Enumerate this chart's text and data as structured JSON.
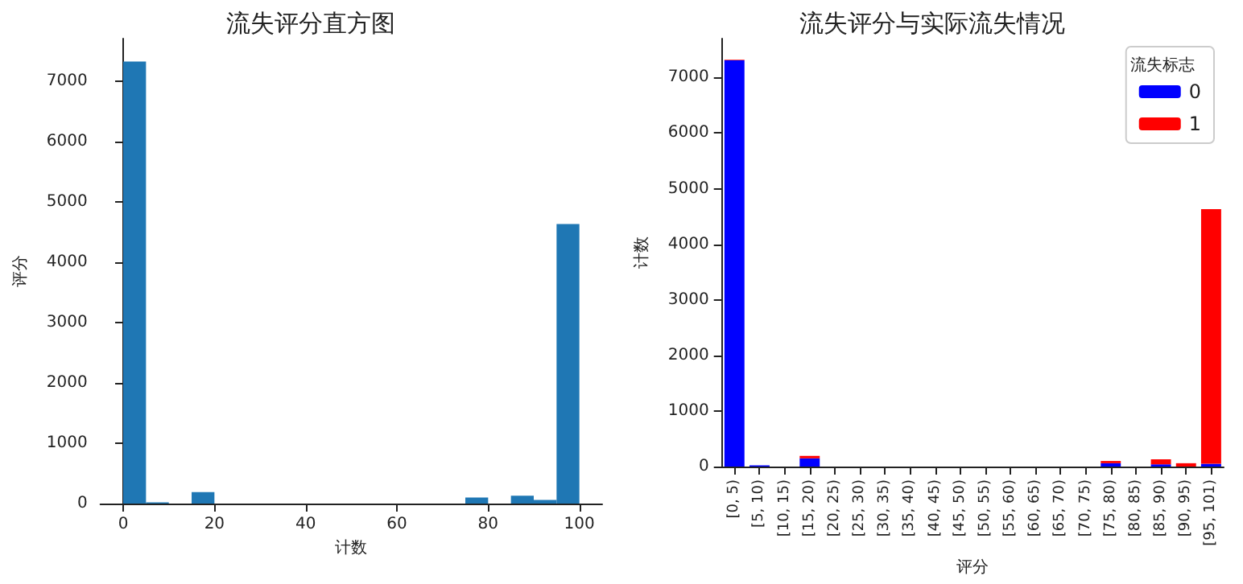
{
  "chart_data": [
    {
      "type": "histogram",
      "title": "流失评分直方图",
      "xlabel": "计数",
      "ylabel": "评分",
      "bins": [
        0,
        5,
        10,
        15,
        20,
        25,
        30,
        35,
        40,
        45,
        50,
        55,
        60,
        65,
        70,
        75,
        80,
        85,
        90,
        95,
        100
      ],
      "values": [
        7320,
        20,
        0,
        190,
        0,
        0,
        0,
        0,
        0,
        0,
        0,
        0,
        0,
        0,
        0,
        100,
        0,
        130,
        60,
        4630
      ],
      "color": "#1f77b4",
      "xlim": [
        -5,
        105
      ],
      "xticks": [
        0,
        20,
        40,
        60,
        80,
        100
      ],
      "ylim": [
        0,
        7700
      ],
      "yticks": [
        0,
        1000,
        2000,
        3000,
        4000,
        5000,
        6000,
        7000
      ],
      "grid": false
    },
    {
      "type": "bar",
      "stacked": true,
      "title": "流失评分与实际流失情况",
      "xlabel": "评分",
      "ylabel": "计数",
      "legend_title": "流失标志",
      "legend": "top right",
      "grid": false,
      "categories": [
        "[0, 5)",
        "[5, 10)",
        "[10, 15)",
        "[15, 20)",
        "[20, 25)",
        "[25, 30)",
        "[30, 35)",
        "[35, 40)",
        "[40, 45)",
        "[45, 50)",
        "[50, 55)",
        "[55, 60)",
        "[60, 65)",
        "[65, 70)",
        "[70, 75)",
        "[75, 80)",
        "[80, 85)",
        "[85, 90)",
        "[90, 95)",
        "[95, 101)"
      ],
      "ylim": [
        0,
        7700
      ],
      "yticks": [
        0,
        1000,
        2000,
        3000,
        4000,
        5000,
        6000,
        7000
      ],
      "series": [
        {
          "name": "0",
          "color": "#0000ff",
          "values": [
            7310,
            20,
            0,
            150,
            0,
            0,
            0,
            0,
            0,
            0,
            0,
            0,
            0,
            0,
            0,
            60,
            0,
            40,
            0,
            50
          ]
        },
        {
          "name": "1",
          "color": "#ff0000",
          "values": [
            10,
            0,
            0,
            40,
            0,
            0,
            0,
            0,
            0,
            0,
            0,
            0,
            0,
            0,
            0,
            40,
            0,
            90,
            60,
            4580
          ]
        }
      ]
    }
  ]
}
